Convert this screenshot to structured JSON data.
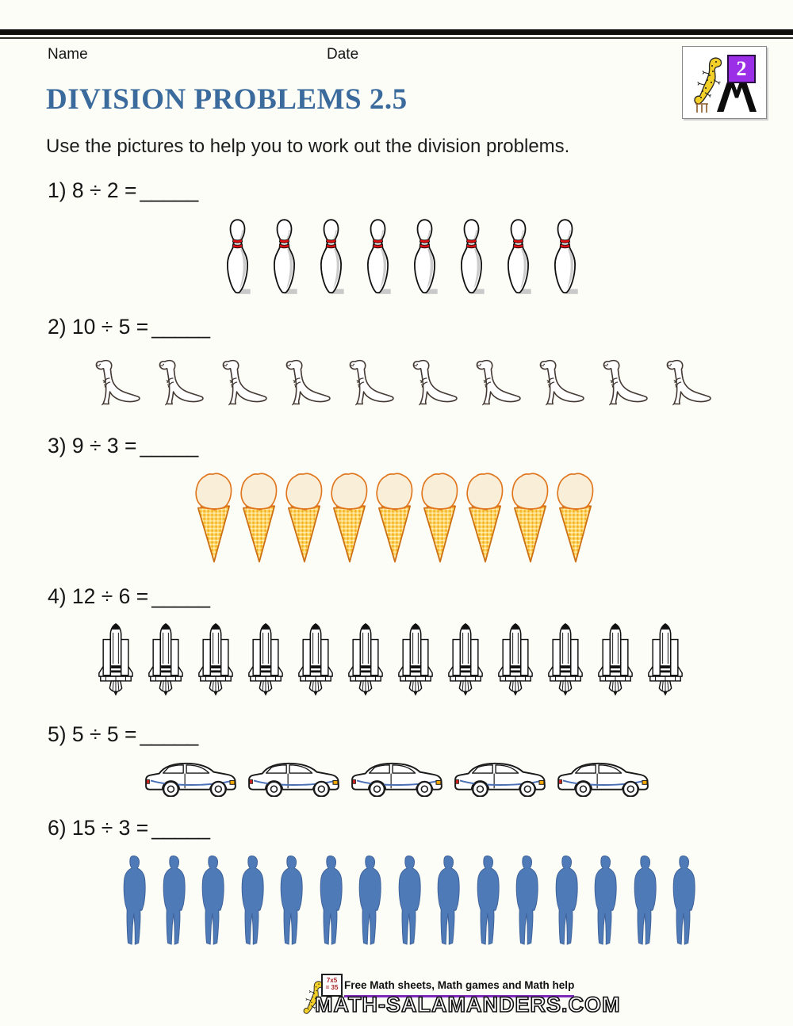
{
  "header": {
    "name_label": "Name",
    "date_label": "Date"
  },
  "logo": {
    "grade": "2"
  },
  "title": "DIVISION PROBLEMS 2.5",
  "instruction": "Use the pictures to help you to work out the division problems.",
  "problems": [
    {
      "label": "1) 8 ÷ 2 =",
      "blank": "_____",
      "item": "bowling-pin",
      "count": 8
    },
    {
      "label": "2) 10 ÷ 5 =",
      "blank": "_____",
      "item": "dinosaur",
      "count": 10
    },
    {
      "label": "3) 9 ÷ 3 =",
      "blank": "_____",
      "item": "ice-cream",
      "count": 9
    },
    {
      "label": "4) 12 ÷ 6 =",
      "blank": "_____",
      "item": "rocket",
      "count": 12
    },
    {
      "label": "5) 5 ÷ 5 =",
      "blank": "_____",
      "item": "car",
      "count": 5
    },
    {
      "label": "6) 15 ÷ 3 =",
      "blank": "_____",
      "item": "person",
      "count": 15
    }
  ],
  "footer": {
    "board_line1": "7x5",
    "board_line2": "= 35",
    "tagline": "Free Math sheets, Math games and Math help",
    "site": "Math-Salamanders.com"
  },
  "colors": {
    "title_blue": "#3b6a9d",
    "stripe_red": "#e01010",
    "cone_yellow": "#ffd24a",
    "cone_orange": "#e8940f",
    "person_blue": "#4f7ab8",
    "swoosh_blue": "#4a6fb5",
    "logo_purple": "#9b2fe8",
    "underline_purple": "#7b2bb8",
    "salamander_yellow": "#f2d028"
  }
}
